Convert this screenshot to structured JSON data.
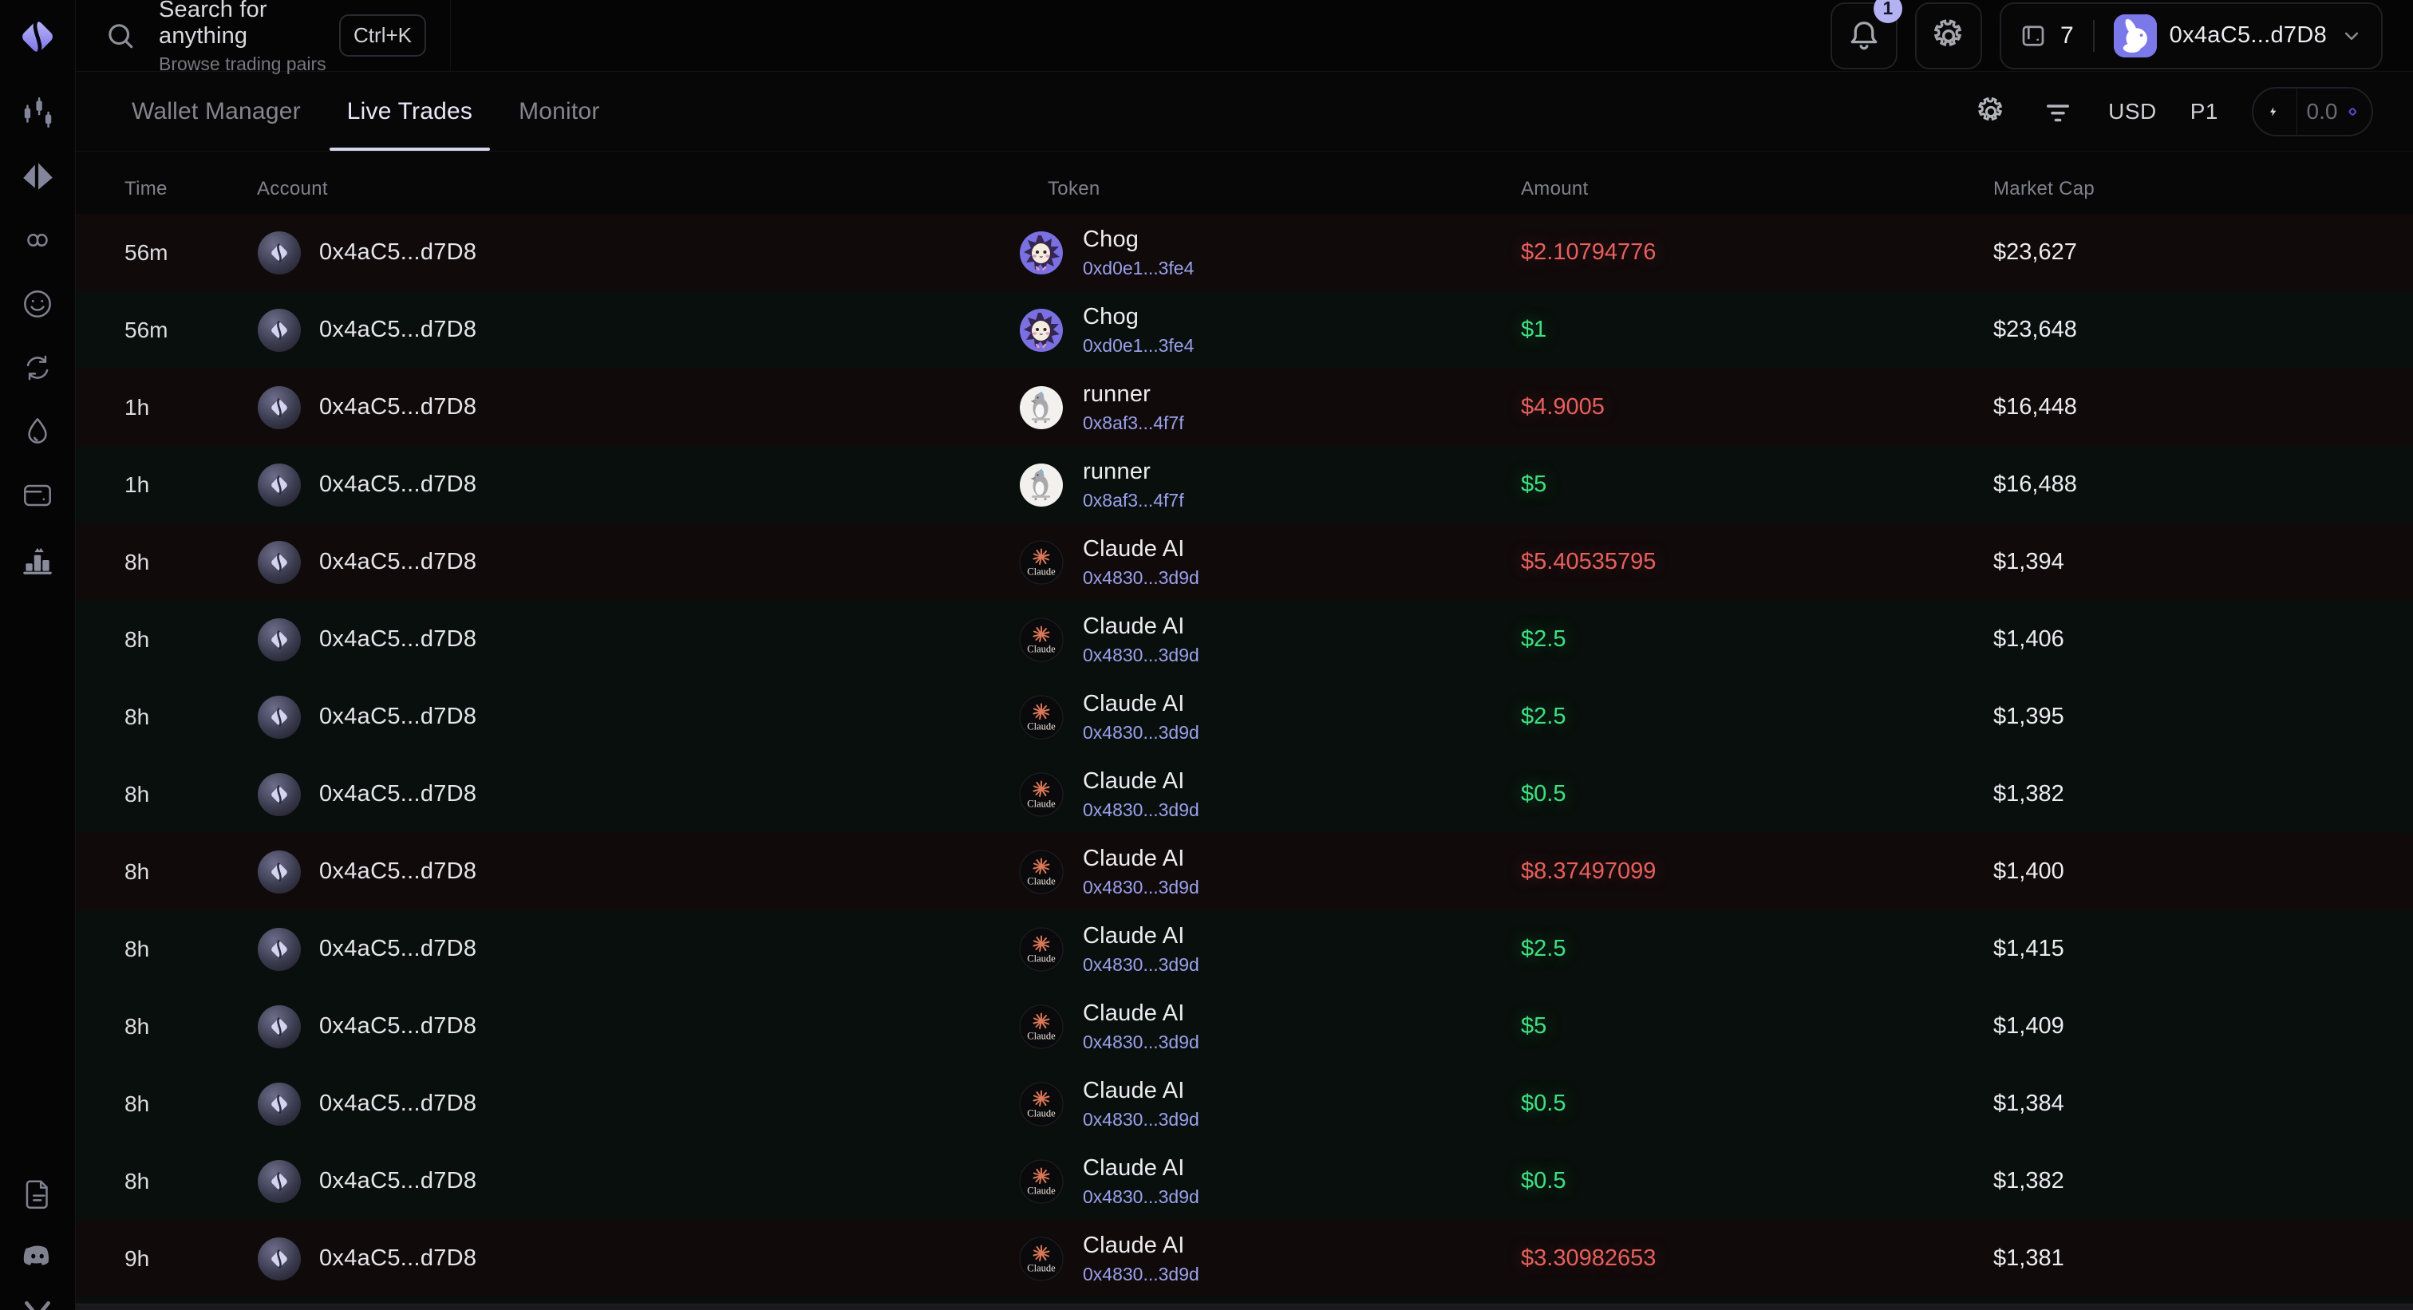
{
  "colors": {
    "buy": "#3FE081",
    "sell": "#E5605E",
    "link": "#9AA0EA",
    "accent": "#8B84F0",
    "quickbuy_diamond": "#584ED2",
    "badge_bg": "#B5B2F3"
  },
  "sidebar": {
    "nav_items": [
      {
        "icon": "candlesticks-icon"
      },
      {
        "icon": "split-diamond-icon"
      },
      {
        "icon": "infinity-icon"
      },
      {
        "icon": "smiley-icon"
      },
      {
        "icon": "refresh-icon"
      },
      {
        "icon": "droplet-icon"
      },
      {
        "icon": "wallet-card-icon"
      },
      {
        "icon": "leaderboard-icon"
      }
    ],
    "bottom_items": [
      {
        "icon": "document-icon"
      },
      {
        "icon": "discord-icon"
      },
      {
        "icon": "x-twitter-icon"
      }
    ]
  },
  "topbar": {
    "search": {
      "title": "Search for anything",
      "subtitle": "Browse trading pairs",
      "shortcut": "Ctrl+K"
    },
    "notifications_badge": "1",
    "wallet_count": "7",
    "wallet_address": "0x4aC5...d7D8"
  },
  "tabs": [
    {
      "label": "Wallet Manager",
      "active": false
    },
    {
      "label": "Live Trades",
      "active": true
    },
    {
      "label": "Monitor",
      "active": false
    }
  ],
  "controls": {
    "currency": "USD",
    "preset": "P1",
    "quick_buy_value": "0.0"
  },
  "table": {
    "columns": [
      "Time",
      "Account",
      "Token",
      "Amount",
      "Market Cap"
    ],
    "rows": [
      {
        "time": "56m",
        "account": "0x4aC5...d7D8",
        "token": {
          "name": "Chog",
          "address": "0xd0e1...3fe4",
          "icon": "chog"
        },
        "amount": "$2.10794776",
        "side": "sell",
        "market_cap": "$23,627"
      },
      {
        "time": "56m",
        "account": "0x4aC5...d7D8",
        "token": {
          "name": "Chog",
          "address": "0xd0e1...3fe4",
          "icon": "chog"
        },
        "amount": "$1",
        "side": "buy",
        "market_cap": "$23,648"
      },
      {
        "time": "1h",
        "account": "0x4aC5...d7D8",
        "token": {
          "name": "runner",
          "address": "0x8af3...4f7f",
          "icon": "runner"
        },
        "amount": "$4.9005",
        "side": "sell",
        "market_cap": "$16,448"
      },
      {
        "time": "1h",
        "account": "0x4aC5...d7D8",
        "token": {
          "name": "runner",
          "address": "0x8af3...4f7f",
          "icon": "runner"
        },
        "amount": "$5",
        "side": "buy",
        "market_cap": "$16,488"
      },
      {
        "time": "8h",
        "account": "0x4aC5...d7D8",
        "token": {
          "name": "Claude AI",
          "address": "0x4830...3d9d",
          "icon": "claude"
        },
        "amount": "$5.40535795",
        "side": "sell",
        "market_cap": "$1,394"
      },
      {
        "time": "8h",
        "account": "0x4aC5...d7D8",
        "token": {
          "name": "Claude AI",
          "address": "0x4830...3d9d",
          "icon": "claude"
        },
        "amount": "$2.5",
        "side": "buy",
        "market_cap": "$1,406"
      },
      {
        "time": "8h",
        "account": "0x4aC5...d7D8",
        "token": {
          "name": "Claude AI",
          "address": "0x4830...3d9d",
          "icon": "claude"
        },
        "amount": "$2.5",
        "side": "buy",
        "market_cap": "$1,395"
      },
      {
        "time": "8h",
        "account": "0x4aC5...d7D8",
        "token": {
          "name": "Claude AI",
          "address": "0x4830...3d9d",
          "icon": "claude"
        },
        "amount": "$0.5",
        "side": "buy",
        "market_cap": "$1,382"
      },
      {
        "time": "8h",
        "account": "0x4aC5...d7D8",
        "token": {
          "name": "Claude AI",
          "address": "0x4830...3d9d",
          "icon": "claude"
        },
        "amount": "$8.37497099",
        "side": "sell",
        "market_cap": "$1,400"
      },
      {
        "time": "8h",
        "account": "0x4aC5...d7D8",
        "token": {
          "name": "Claude AI",
          "address": "0x4830...3d9d",
          "icon": "claude"
        },
        "amount": "$2.5",
        "side": "buy",
        "market_cap": "$1,415"
      },
      {
        "time": "8h",
        "account": "0x4aC5...d7D8",
        "token": {
          "name": "Claude AI",
          "address": "0x4830...3d9d",
          "icon": "claude"
        },
        "amount": "$5",
        "side": "buy",
        "market_cap": "$1,409"
      },
      {
        "time": "8h",
        "account": "0x4aC5...d7D8",
        "token": {
          "name": "Claude AI",
          "address": "0x4830...3d9d",
          "icon": "claude"
        },
        "amount": "$0.5",
        "side": "buy",
        "market_cap": "$1,384"
      },
      {
        "time": "8h",
        "account": "0x4aC5...d7D8",
        "token": {
          "name": "Claude AI",
          "address": "0x4830...3d9d",
          "icon": "claude"
        },
        "amount": "$0.5",
        "side": "buy",
        "market_cap": "$1,382"
      },
      {
        "time": "9h",
        "account": "0x4aC5...d7D8",
        "token": {
          "name": "Claude AI",
          "address": "0x4830...3d9d",
          "icon": "claude"
        },
        "amount": "$3.30982653",
        "side": "sell",
        "market_cap": "$1,381"
      }
    ]
  }
}
